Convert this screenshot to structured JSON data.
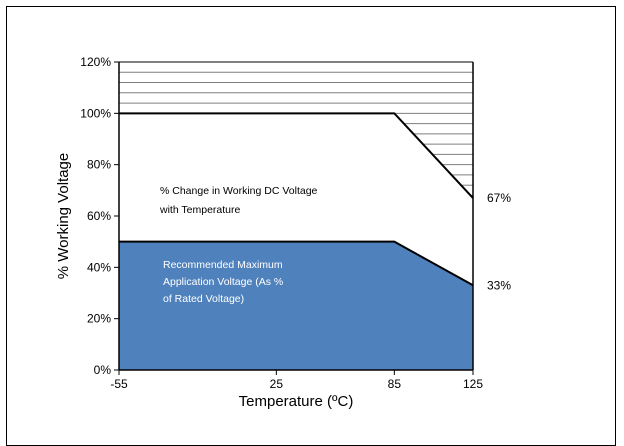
{
  "chart_data": {
    "type": "area",
    "xlabel": "Temperature (ºC)",
    "ylabel": "% Working Voltage",
    "x_ticks": [
      "-55",
      "25",
      "85",
      "125"
    ],
    "y_ticks": [
      "0%",
      "20%",
      "40%",
      "60%",
      "80%",
      "100%",
      "120%"
    ],
    "xlim": [
      -55,
      125
    ],
    "ylim": [
      0,
      120
    ],
    "series": [
      {
        "x": [
          -55,
          85,
          125
        ],
        "y": [
          100,
          100,
          67
        ]
      },
      {
        "x": [
          -55,
          85,
          125
        ],
        "y": [
          50,
          50,
          33
        ]
      }
    ],
    "point_labels": [
      "67%",
      "33%"
    ],
    "annotations": {
      "working_dc": [
        "% Change in Working DC Voltage",
        "with Temperature"
      ],
      "recommended": [
        "Recommended Maximum",
        "Application Voltage (As %",
        "of Rated Voltage)"
      ]
    },
    "colors": {
      "fill": "#4f81bd",
      "line": "#000000",
      "hatch": "#7f7f7f"
    },
    "grid": false
  }
}
